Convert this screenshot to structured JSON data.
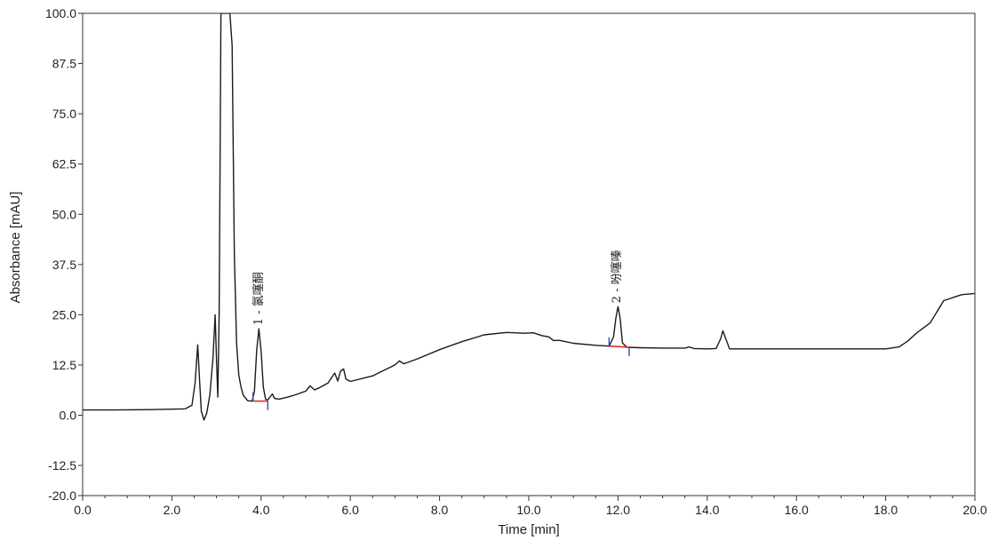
{
  "chart_data": {
    "type": "line",
    "xlabel": "Time [min]",
    "ylabel": "Absorbance [mAU]",
    "xlim": [
      0,
      20
    ],
    "ylim": [
      -20,
      100
    ],
    "x_ticks": [
      0,
      2,
      4,
      6,
      8,
      10,
      12,
      14,
      16,
      18,
      20
    ],
    "x_tick_labels": [
      "0.0",
      "2.0",
      "4.0",
      "6.0",
      "8.0",
      "10.0",
      "12.0",
      "14.0",
      "16.0",
      "18.0",
      "20.0"
    ],
    "y_ticks": [
      -20,
      -12.5,
      0,
      12.5,
      25,
      37.5,
      50,
      62.5,
      75,
      87.5,
      100
    ],
    "y_tick_labels": [
      "-20.0",
      "-12.5",
      "0.0",
      "12.5",
      "25.0",
      "37.5",
      "50.0",
      "62.5",
      "75.0",
      "87.5",
      "100.0"
    ],
    "grid": false,
    "colors": {
      "trace": "#1a1a1a",
      "baseline": "#e02020",
      "marker": "#2040d0",
      "axis": "#333333"
    },
    "series": [
      {
        "x": [
          0.0,
          0.5,
          1.0,
          1.5,
          2.0,
          2.3,
          2.45,
          2.52,
          2.58,
          2.62,
          2.66,
          2.72,
          2.78,
          2.85,
          2.92,
          2.97,
          3.0,
          3.03,
          3.06,
          3.09,
          3.1,
          3.13,
          3.2,
          3.25,
          3.3,
          3.35,
          3.4,
          3.45,
          3.5,
          3.55,
          3.6,
          3.7,
          3.8,
          3.85,
          3.9,
          3.95,
          4.0,
          4.05,
          4.1,
          4.15,
          4.2,
          4.25,
          4.3,
          4.4,
          4.6,
          4.8,
          5.0,
          5.1,
          5.2,
          5.3,
          5.5,
          5.65,
          5.72,
          5.78,
          5.85,
          5.9,
          6.0,
          6.5,
          7.0,
          7.1,
          7.2,
          7.5,
          8.0,
          8.5,
          9.0,
          9.5,
          9.9,
          10.1,
          10.3,
          10.45,
          10.55,
          10.7,
          11.0,
          11.5,
          11.8,
          11.9,
          11.95,
          12.0,
          12.05,
          12.1,
          12.2,
          12.5,
          13.0,
          13.5,
          13.6,
          13.7,
          14.0,
          14.2,
          14.3,
          14.35,
          14.4,
          14.5,
          15.0,
          16.0,
          17.0,
          18.0,
          18.3,
          18.5,
          18.7,
          19.0,
          19.3,
          19.7,
          20.0
        ],
        "y": [
          1.3,
          1.3,
          1.35,
          1.4,
          1.5,
          1.6,
          2.5,
          8.0,
          17.5,
          9.0,
          1.0,
          -1.2,
          0.5,
          5.0,
          14.0,
          25.0,
          14.0,
          4.5,
          25.0,
          80.0,
          100.0,
          100.0,
          100.0,
          100.0,
          100.0,
          92.0,
          40.0,
          18.0,
          10.0,
          7.0,
          5.0,
          3.6,
          3.5,
          6.0,
          16.0,
          21.5,
          16.0,
          7.0,
          4.0,
          3.8,
          4.5,
          5.3,
          4.2,
          4.0,
          4.5,
          5.2,
          6.0,
          7.3,
          6.3,
          6.8,
          8.0,
          10.5,
          8.5,
          11.0,
          11.5,
          9.0,
          8.4,
          9.8,
          12.5,
          13.5,
          12.8,
          14.0,
          16.3,
          18.3,
          20.0,
          20.6,
          20.4,
          20.5,
          19.8,
          19.5,
          18.6,
          18.6,
          17.9,
          17.4,
          17.2,
          19.5,
          24.0,
          27.0,
          24.0,
          18.0,
          16.9,
          16.8,
          16.7,
          16.7,
          17.0,
          16.6,
          16.5,
          16.6,
          19.0,
          21.0,
          19.5,
          16.5,
          16.5,
          16.5,
          16.5,
          16.5,
          17.0,
          18.5,
          20.5,
          23.0,
          28.5,
          30.0,
          30.3
        ]
      }
    ],
    "peaks": [
      {
        "number": "1",
        "name": "1 - 氯噻酮",
        "time": 3.97,
        "height": 21.5,
        "start": 3.82,
        "end": 4.15,
        "base_start": 3.5,
        "base_end": 3.5
      },
      {
        "number": "2",
        "name": "2 - 吩噻嗪",
        "time": 12.0,
        "height": 27.0,
        "start": 11.8,
        "end": 12.25,
        "base_start": 17.2,
        "base_end": 16.9
      }
    ]
  }
}
